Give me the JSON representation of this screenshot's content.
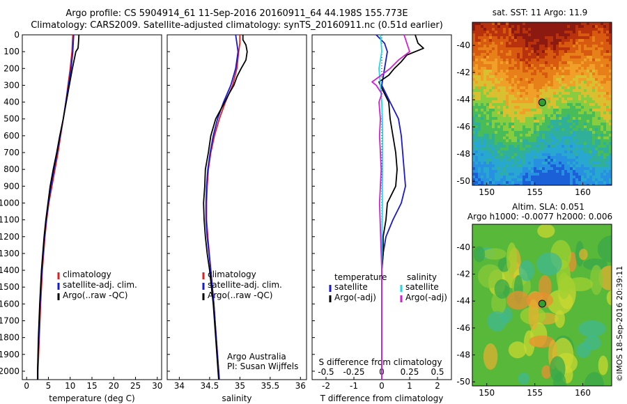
{
  "header": {
    "title_line1": "Argo profile: CS 5904914_61 11-Sep-2016 20160911_64 44.198S 155.773E",
    "title_line2": "Climatology: CARS2009. Satellite-adjusted climatology: synTS_20160911.nc (0.51d earlier)"
  },
  "footer_stamp": "©IMOS 18-Sep-2016 20:39:11",
  "colors": {
    "climatology": "#e02020",
    "satellite": "#1818d0",
    "argo": "#000000",
    "salinity_satellite": "#20d8e8",
    "salinity_argo": "#d020d0"
  },
  "depth_axis": {
    "lim": [
      0,
      2050
    ],
    "ticks": [
      0,
      100,
      200,
      300,
      400,
      500,
      600,
      700,
      800,
      900,
      1000,
      1100,
      1200,
      1300,
      1400,
      1500,
      1600,
      1700,
      1800,
      1900,
      2000
    ],
    "inverted": true
  },
  "chart_data": [
    {
      "type": "line",
      "id": "temperature",
      "xlabel": "temperature (deg C)",
      "xlim": [
        -1,
        31
      ],
      "xticks": [
        0,
        5,
        10,
        15,
        20,
        25,
        30
      ],
      "legend": {
        "placement": "lower-right",
        "entries": [
          {
            "label": "climatology",
            "color": "#e02020"
          },
          {
            "label": "satellite-adj. clim.",
            "color": "#1818d0"
          },
          {
            "label": "Argo(..raw -QC)",
            "color": "#000000"
          }
        ]
      },
      "series": [
        {
          "name": "climatology",
          "color": "#e02020",
          "depth": [
            0,
            50,
            100,
            150,
            200,
            300,
            400,
            500,
            600,
            700,
            800,
            900,
            1000,
            1100,
            1200,
            1400,
            1600,
            1800,
            2000,
            2050
          ],
          "values": [
            10.6,
            10.5,
            10.4,
            10.2,
            10.0,
            9.5,
            9.0,
            8.4,
            7.8,
            7.2,
            6.5,
            5.8,
            5.1,
            4.6,
            4.2,
            3.6,
            3.2,
            2.9,
            2.6,
            2.6
          ]
        },
        {
          "name": "satellite-adj. clim.",
          "color": "#1818d0",
          "depth": [
            0,
            50,
            100,
            150,
            200,
            300,
            400,
            500,
            600,
            700,
            800,
            900,
            1000,
            1100,
            1200,
            1400,
            1600,
            1800,
            2000,
            2050
          ],
          "values": [
            10.8,
            10.7,
            10.6,
            10.4,
            10.2,
            9.6,
            9.0,
            8.4,
            7.7,
            7.0,
            6.3,
            5.6,
            5.0,
            4.5,
            4.1,
            3.5,
            3.1,
            2.8,
            2.5,
            2.5
          ]
        },
        {
          "name": "Argo(..raw -QC)",
          "color": "#000000",
          "depth": [
            0,
            50,
            80,
            100,
            150,
            200,
            300,
            400,
            500,
            600,
            700,
            800,
            900,
            1000,
            1100,
            1200,
            1400,
            1600,
            1800,
            2000,
            2050
          ],
          "values": [
            12.0,
            11.9,
            11.8,
            11.3,
            10.9,
            10.5,
            9.8,
            9.1,
            8.4,
            7.6,
            6.9,
            6.1,
            5.4,
            4.9,
            4.4,
            4.0,
            3.4,
            3.0,
            2.7,
            2.5,
            2.5
          ]
        }
      ]
    },
    {
      "type": "line",
      "id": "salinity",
      "xlabel": "salinity",
      "xlim": [
        33.8,
        36.1
      ],
      "xticks": [
        34,
        34.5,
        35,
        35.5,
        36
      ],
      "annotation": [
        "Argo Australia",
        "PI: Susan Wijffels"
      ],
      "legend": {
        "placement": "lower-right",
        "entries": [
          {
            "label": "climatology",
            "color": "#e02020"
          },
          {
            "label": "satellite-adj. clim.",
            "color": "#1818d0"
          },
          {
            "label": "Argo(..raw -QC)",
            "color": "#000000"
          }
        ]
      },
      "series": [
        {
          "name": "climatology",
          "color": "#e02020",
          "depth": [
            0,
            50,
            100,
            200,
            300,
            400,
            500,
            600,
            700,
            800,
            900,
            1000,
            1100,
            1200,
            1400,
            1600,
            1800,
            2000,
            2050
          ],
          "values": [
            35.0,
            35.0,
            34.98,
            34.95,
            34.88,
            34.76,
            34.66,
            34.58,
            34.52,
            34.48,
            34.46,
            34.45,
            34.45,
            34.47,
            34.52,
            34.57,
            34.61,
            34.65,
            34.66
          ]
        },
        {
          "name": "satellite-adj. clim.",
          "color": "#1818d0",
          "depth": [
            0,
            50,
            100,
            200,
            300,
            400,
            500,
            600,
            700,
            800,
            900,
            1000,
            1100,
            1200,
            1400,
            1600,
            1800,
            2000,
            2050
          ],
          "values": [
            34.93,
            34.95,
            34.97,
            34.93,
            34.85,
            34.73,
            34.63,
            34.56,
            34.51,
            34.47,
            34.45,
            34.44,
            34.44,
            34.46,
            34.52,
            34.57,
            34.61,
            34.65,
            34.66
          ]
        },
        {
          "name": "Argo(..raw -QC)",
          "color": "#000000",
          "depth": [
            0,
            30,
            60,
            100,
            150,
            200,
            250,
            300,
            350,
            400,
            500,
            600,
            700,
            800,
            900,
            1000,
            1100,
            1200,
            1300,
            1400,
            1600,
            1800,
            2000,
            2050
          ],
          "values": [
            35.05,
            35.05,
            35.1,
            35.12,
            35.1,
            35.02,
            34.95,
            34.9,
            34.82,
            34.75,
            34.6,
            34.52,
            34.48,
            34.43,
            34.42,
            34.4,
            34.41,
            34.43,
            34.46,
            34.5,
            34.56,
            34.6,
            34.64,
            34.65
          ]
        }
      ]
    },
    {
      "type": "line",
      "id": "difference",
      "xlabel": "T difference from climatology",
      "xlabel_secondary": "S difference from climatology",
      "xlim": [
        -2.5,
        2.5
      ],
      "xticks": [
        -2,
        -1,
        0,
        1,
        2
      ],
      "secondary_xticks": [
        -0.5,
        -0.25,
        0,
        0.25,
        0.5
      ],
      "legend": {
        "placement": "lower-right",
        "temperature_heading": "temperature",
        "salinity_heading": "salinity",
        "temperature_entries": [
          {
            "label": "satellite",
            "color": "#1818d0"
          },
          {
            "label": "Argo(-adj)",
            "color": "#000000"
          }
        ],
        "salinity_entries": [
          {
            "label": "satellite",
            "color": "#20d8e8"
          },
          {
            "label": "Argo(-adj)",
            "color": "#d020d0"
          }
        ]
      },
      "series": [
        {
          "name": "T satellite",
          "color": "#1818d0",
          "depth": [
            0,
            50,
            100,
            150,
            200,
            250,
            300,
            400,
            500,
            600,
            700,
            800,
            900,
            1000,
            1100,
            1200,
            1300,
            1400,
            1600,
            1800,
            2000,
            2050
          ],
          "values": [
            -0.2,
            0.1,
            0.2,
            0.15,
            0.1,
            0.05,
            0.0,
            0.3,
            0.6,
            0.7,
            0.75,
            0.8,
            0.85,
            0.7,
            0.4,
            0.15,
            0.05,
            0.0,
            0.0,
            0.0,
            0.0,
            0.0
          ]
        },
        {
          "name": "T Argo(-adj)",
          "color": "#000000",
          "depth": [
            0,
            50,
            80,
            120,
            160,
            200,
            240,
            280,
            300,
            350,
            400,
            500,
            600,
            700,
            800,
            900,
            1000,
            1100,
            1200,
            1300,
            1400,
            1600,
            1800,
            2000,
            2050
          ],
          "values": [
            1.2,
            1.3,
            1.5,
            0.9,
            0.7,
            0.45,
            0.25,
            -0.1,
            -0.05,
            0.1,
            0.25,
            0.3,
            0.4,
            0.5,
            0.55,
            0.5,
            0.2,
            0.15,
            0.05,
            0.05,
            0.0,
            0.0,
            0.0,
            0.0,
            0.0
          ]
        },
        {
          "name": "S satellite",
          "color": "#20d8e8",
          "depth": [
            0,
            50,
            100,
            200,
            300,
            400,
            500,
            600,
            700,
            800,
            900,
            1000,
            1200,
            1400,
            1600,
            1800,
            2000,
            2050
          ],
          "values": [
            -0.05,
            -0.02,
            0.0,
            -0.1,
            -0.05,
            0.0,
            0.02,
            0.03,
            0.03,
            0.03,
            0.02,
            0.02,
            0.01,
            0.0,
            0.0,
            0.0,
            0.0,
            0.0
          ]
        },
        {
          "name": "S Argo(-adj)",
          "color": "#d020d0",
          "depth": [
            0,
            50,
            100,
            150,
            200,
            250,
            280,
            300,
            350,
            400,
            500,
            600,
            700,
            800,
            900,
            1000,
            1100,
            1200,
            1300,
            1400,
            1600,
            1800,
            2000,
            2050
          ],
          "values": [
            0.8,
            0.9,
            1.0,
            0.6,
            0.3,
            -0.1,
            -0.35,
            -0.2,
            0.0,
            -0.1,
            -0.05,
            -0.08,
            -0.05,
            -0.02,
            -0.05,
            -0.08,
            -0.06,
            -0.04,
            -0.02,
            0.0,
            0.0,
            0.0,
            0.0,
            0.0
          ]
        }
      ]
    },
    {
      "type": "heatmap",
      "id": "sst_map",
      "title": "sat. SST: 11 Argo: 11.9",
      "xlim": [
        148.5,
        163
      ],
      "ylim": [
        -50.3,
        -38.3
      ],
      "xticks": [
        150,
        155,
        160
      ],
      "yticks": [
        -40,
        -42,
        -44,
        -46,
        -48,
        -50
      ],
      "marker": {
        "lon": 155.773,
        "lat": -44.198
      }
    },
    {
      "type": "heatmap",
      "id": "sla_map",
      "title_line1": "Altim. SLA: 0.051",
      "title_line2": "Argo h1000: -0.0077 h2000: 0.006",
      "xlim": [
        148.5,
        163
      ],
      "ylim": [
        -50.3,
        -38.3
      ],
      "xticks": [
        150,
        155,
        160
      ],
      "yticks": [
        -40,
        -42,
        -44,
        -46,
        -48,
        -50
      ],
      "marker": {
        "lon": 155.773,
        "lat": -44.198
      }
    }
  ]
}
